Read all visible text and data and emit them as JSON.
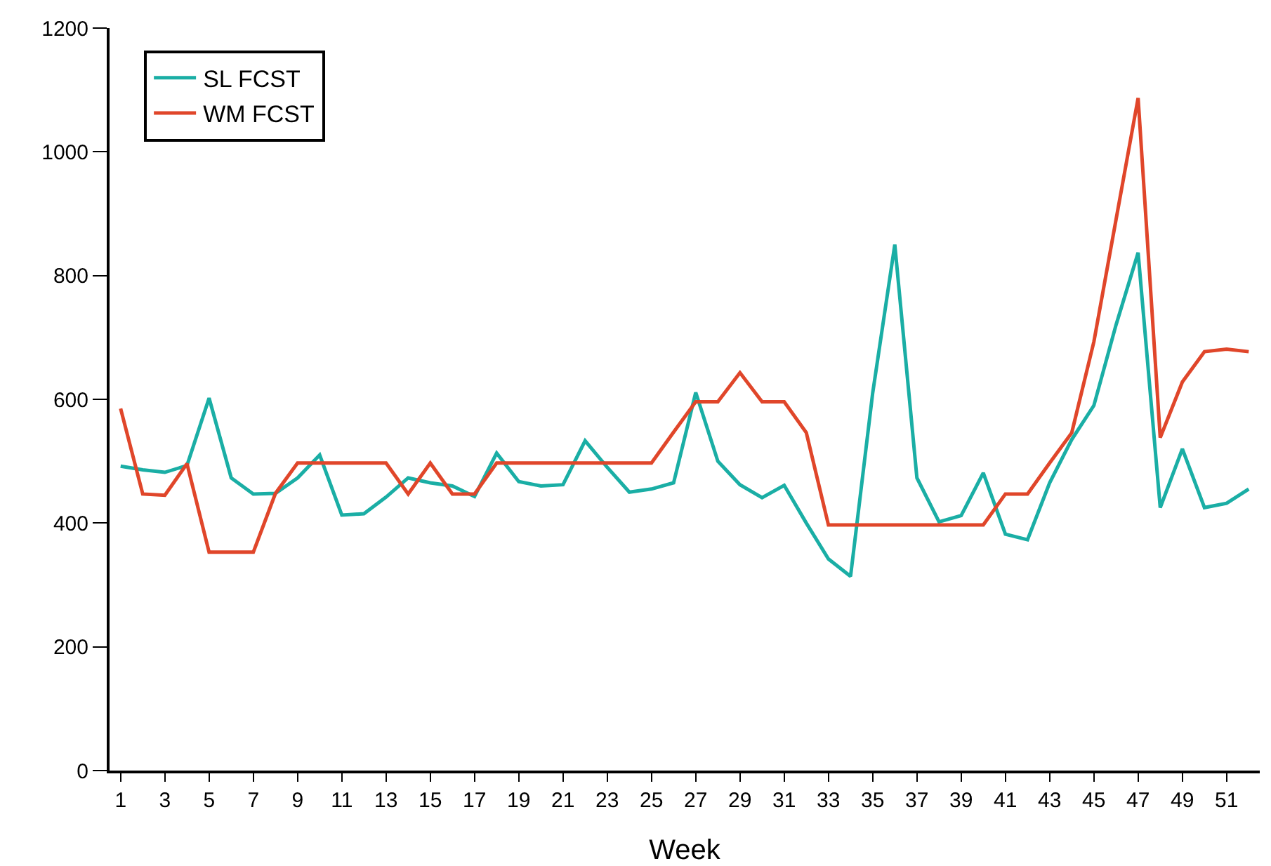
{
  "chart_data": {
    "type": "line",
    "xlabel": "Week",
    "x": [
      1,
      2,
      3,
      4,
      5,
      6,
      7,
      8,
      9,
      10,
      11,
      12,
      13,
      14,
      15,
      16,
      17,
      18,
      19,
      20,
      21,
      22,
      23,
      24,
      25,
      26,
      27,
      28,
      29,
      30,
      31,
      32,
      33,
      34,
      35,
      36,
      37,
      38,
      39,
      40,
      41,
      42,
      43,
      44,
      45,
      46,
      47,
      48,
      49,
      50,
      51,
      52
    ],
    "xlim": [
      0.5,
      52.5
    ],
    "xticks": [
      1,
      3,
      5,
      7,
      9,
      11,
      13,
      15,
      17,
      19,
      21,
      23,
      25,
      27,
      29,
      31,
      33,
      35,
      37,
      39,
      41,
      43,
      45,
      47,
      49,
      51
    ],
    "ylim": [
      0,
      1200
    ],
    "yticks": [
      0,
      200,
      400,
      600,
      800,
      1000,
      1200
    ],
    "series": [
      {
        "name": "SL FCST",
        "color": "#1aaea5",
        "values": [
          492,
          486,
          482,
          493,
          602,
          473,
          447,
          448,
          473,
          510,
          413,
          415,
          442,
          473,
          465,
          460,
          443,
          513,
          467,
          460,
          462,
          533,
          490,
          450,
          455,
          465,
          611,
          500,
          462,
          441,
          461,
          400,
          342,
          314,
          610,
          850,
          473,
          402,
          412,
          481,
          382,
          373,
          465,
          535,
          590,
          720,
          837,
          425,
          520,
          425,
          432,
          455
        ]
      },
      {
        "name": "WM FCST",
        "color": "#e0462a",
        "values": [
          585,
          447,
          445,
          496,
          353,
          353,
          353,
          448,
          497,
          497,
          497,
          497,
          497,
          447,
          497,
          447,
          447,
          497,
          497,
          497,
          497,
          497,
          497,
          497,
          497,
          547,
          596,
          596,
          643,
          596,
          596,
          546,
          397,
          397,
          397,
          397,
          397,
          397,
          397,
          397,
          447,
          447,
          497,
          546,
          693,
          890,
          1087,
          538,
          628,
          677,
          681,
          677
        ]
      }
    ],
    "grid": false,
    "legend": "top left",
    "marker": "none",
    "line_style": "solid"
  }
}
